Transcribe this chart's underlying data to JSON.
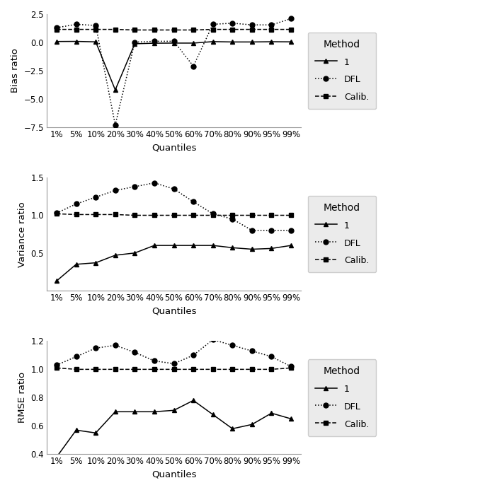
{
  "quantiles": [
    "1%",
    "5%",
    "10%",
    "20%",
    "30%",
    "40%",
    "50%",
    "60%",
    "70%",
    "80%",
    "90%",
    "95%",
    "99%"
  ],
  "bias_method1": [
    0.08,
    0.09,
    0.05,
    -4.2,
    -0.12,
    -0.07,
    -0.06,
    -0.06,
    0.07,
    0.04,
    0.04,
    0.06,
    0.05
  ],
  "bias_DFL": [
    1.3,
    1.6,
    1.5,
    -7.3,
    0.02,
    0.1,
    0.1,
    -2.1,
    1.6,
    1.7,
    1.55,
    1.55,
    2.1
  ],
  "bias_Calib": [
    1.15,
    1.15,
    1.15,
    1.15,
    1.1,
    1.1,
    1.1,
    1.1,
    1.15,
    1.15,
    1.15,
    1.15,
    1.15
  ],
  "var_method1": [
    0.13,
    0.35,
    0.37,
    0.47,
    0.5,
    0.6,
    0.6,
    0.6,
    0.6,
    0.57,
    0.55,
    0.56,
    0.6
  ],
  "var_DFL": [
    1.03,
    1.15,
    1.24,
    1.33,
    1.38,
    1.43,
    1.35,
    1.18,
    1.02,
    0.95,
    0.8,
    0.8,
    0.8
  ],
  "var_Calib": [
    1.02,
    1.01,
    1.01,
    1.01,
    1.0,
    1.0,
    1.0,
    1.0,
    1.0,
    1.0,
    1.0,
    1.0,
    1.0
  ],
  "rmse_method1": [
    0.38,
    0.57,
    0.55,
    0.7,
    0.7,
    0.7,
    0.71,
    0.78,
    0.68,
    0.58,
    0.61,
    0.69,
    0.65
  ],
  "rmse_DFL": [
    1.03,
    1.09,
    1.15,
    1.17,
    1.12,
    1.06,
    1.04,
    1.1,
    1.21,
    1.17,
    1.13,
    1.09,
    1.02
  ],
  "rmse_Calib": [
    1.01,
    1.0,
    1.0,
    1.0,
    1.0,
    1.0,
    1.0,
    1.0,
    1.0,
    1.0,
    1.0,
    1.0,
    1.01
  ],
  "ylabel_bias": "Bias ratio",
  "ylabel_var": "Variance ratio",
  "ylabel_rmse": "RMSE ratio",
  "xlabel": "Quantiles",
  "ylim_bias": [
    -7.5,
    2.5
  ],
  "yticks_bias": [
    2.5,
    0.0,
    -2.5,
    -5.0,
    -7.5
  ],
  "ylim_var": [
    0.0,
    1.5
  ],
  "yticks_var": [
    0.5,
    1.0,
    1.5
  ],
  "ylim_rmse": [
    0.4,
    1.2
  ],
  "yticks_rmse": [
    0.4,
    0.6,
    0.8,
    1.0,
    1.2
  ],
  "legend_labels": [
    "1",
    "DFL",
    "Calib."
  ],
  "legend_title": "Method",
  "legend_bg": "#ebebeb"
}
